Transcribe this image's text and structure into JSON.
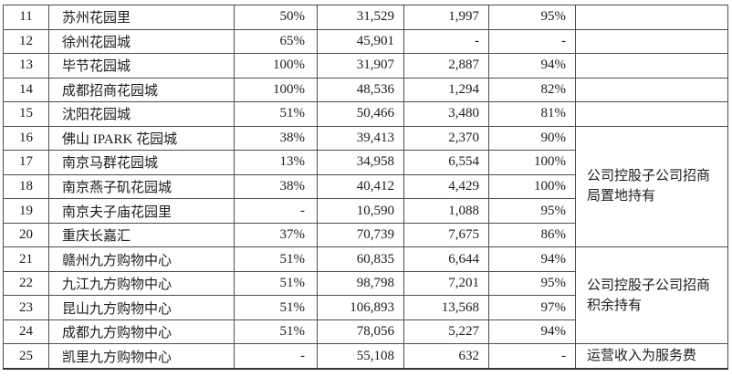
{
  "table": {
    "rows": [
      {
        "no": "11",
        "name": "苏州花园里",
        "pct_a": "50%",
        "val_a": "31,529",
        "val_b": "1,997",
        "pct_b": "95%",
        "note": {
          "text": "",
          "rowspan": 1
        }
      },
      {
        "no": "12",
        "name": "徐州花园城",
        "pct_a": "65%",
        "val_a": "45,901",
        "val_b": "-",
        "pct_b": "-",
        "note": {
          "text": "",
          "rowspan": 1
        }
      },
      {
        "no": "13",
        "name": "毕节花园城",
        "pct_a": "100%",
        "val_a": "31,907",
        "val_b": "2,887",
        "pct_b": "94%",
        "note": {
          "text": "",
          "rowspan": 1
        }
      },
      {
        "no": "14",
        "name": "成都招商花园城",
        "pct_a": "100%",
        "val_a": "48,536",
        "val_b": "1,294",
        "pct_b": "82%",
        "note": {
          "text": "",
          "rowspan": 1
        }
      },
      {
        "no": "15",
        "name": "沈阳花园城",
        "pct_a": "51%",
        "val_a": "50,466",
        "val_b": "3,480",
        "pct_b": "81%",
        "note": {
          "text": "",
          "rowspan": 1
        }
      },
      {
        "no": "16",
        "name": "佛山 IPARK 花园城",
        "pct_a": "38%",
        "val_a": "39,413",
        "val_b": "2,370",
        "pct_b": "90%",
        "note": {
          "text": "公司控股子公司招商\n局置地持有",
          "rowspan": 5
        }
      },
      {
        "no": "17",
        "name": "南京马群花园城",
        "pct_a": "13%",
        "val_a": "34,958",
        "val_b": "6,554",
        "pct_b": "100%"
      },
      {
        "no": "18",
        "name": "南京燕子矶花园城",
        "pct_a": "38%",
        "val_a": "40,412",
        "val_b": "4,429",
        "pct_b": "100%"
      },
      {
        "no": "19",
        "name": "南京夫子庙花园里",
        "pct_a": "-",
        "val_a": "10,590",
        "val_b": "1,088",
        "pct_b": "95%"
      },
      {
        "no": "20",
        "name": "重庆长嘉汇",
        "pct_a": "37%",
        "val_a": "70,739",
        "val_b": "7,675",
        "pct_b": "86%"
      },
      {
        "no": "21",
        "name": "赣州九方购物中心",
        "pct_a": "51%",
        "val_a": "60,835",
        "val_b": "6,644",
        "pct_b": "94%",
        "note": {
          "text": "公司控股子公司招商\n积余持有",
          "rowspan": 4
        }
      },
      {
        "no": "22",
        "name": "九江九方购物中心",
        "pct_a": "51%",
        "val_a": "98,798",
        "val_b": "7,201",
        "pct_b": "95%"
      },
      {
        "no": "23",
        "name": "昆山九方购物中心",
        "pct_a": "51%",
        "val_a": "106,893",
        "val_b": "13,568",
        "pct_b": "97%"
      },
      {
        "no": "24",
        "name": "成都九方购物中心",
        "pct_a": "51%",
        "val_a": "78,056",
        "val_b": "5,227",
        "pct_b": "94%"
      },
      {
        "no": "25",
        "name": "凯里九方购物中心",
        "pct_a": "-",
        "val_a": "55,108",
        "val_b": "632",
        "pct_b": "-",
        "note": {
          "text": "运营收入为服务费",
          "rowspan": 1
        }
      }
    ]
  }
}
